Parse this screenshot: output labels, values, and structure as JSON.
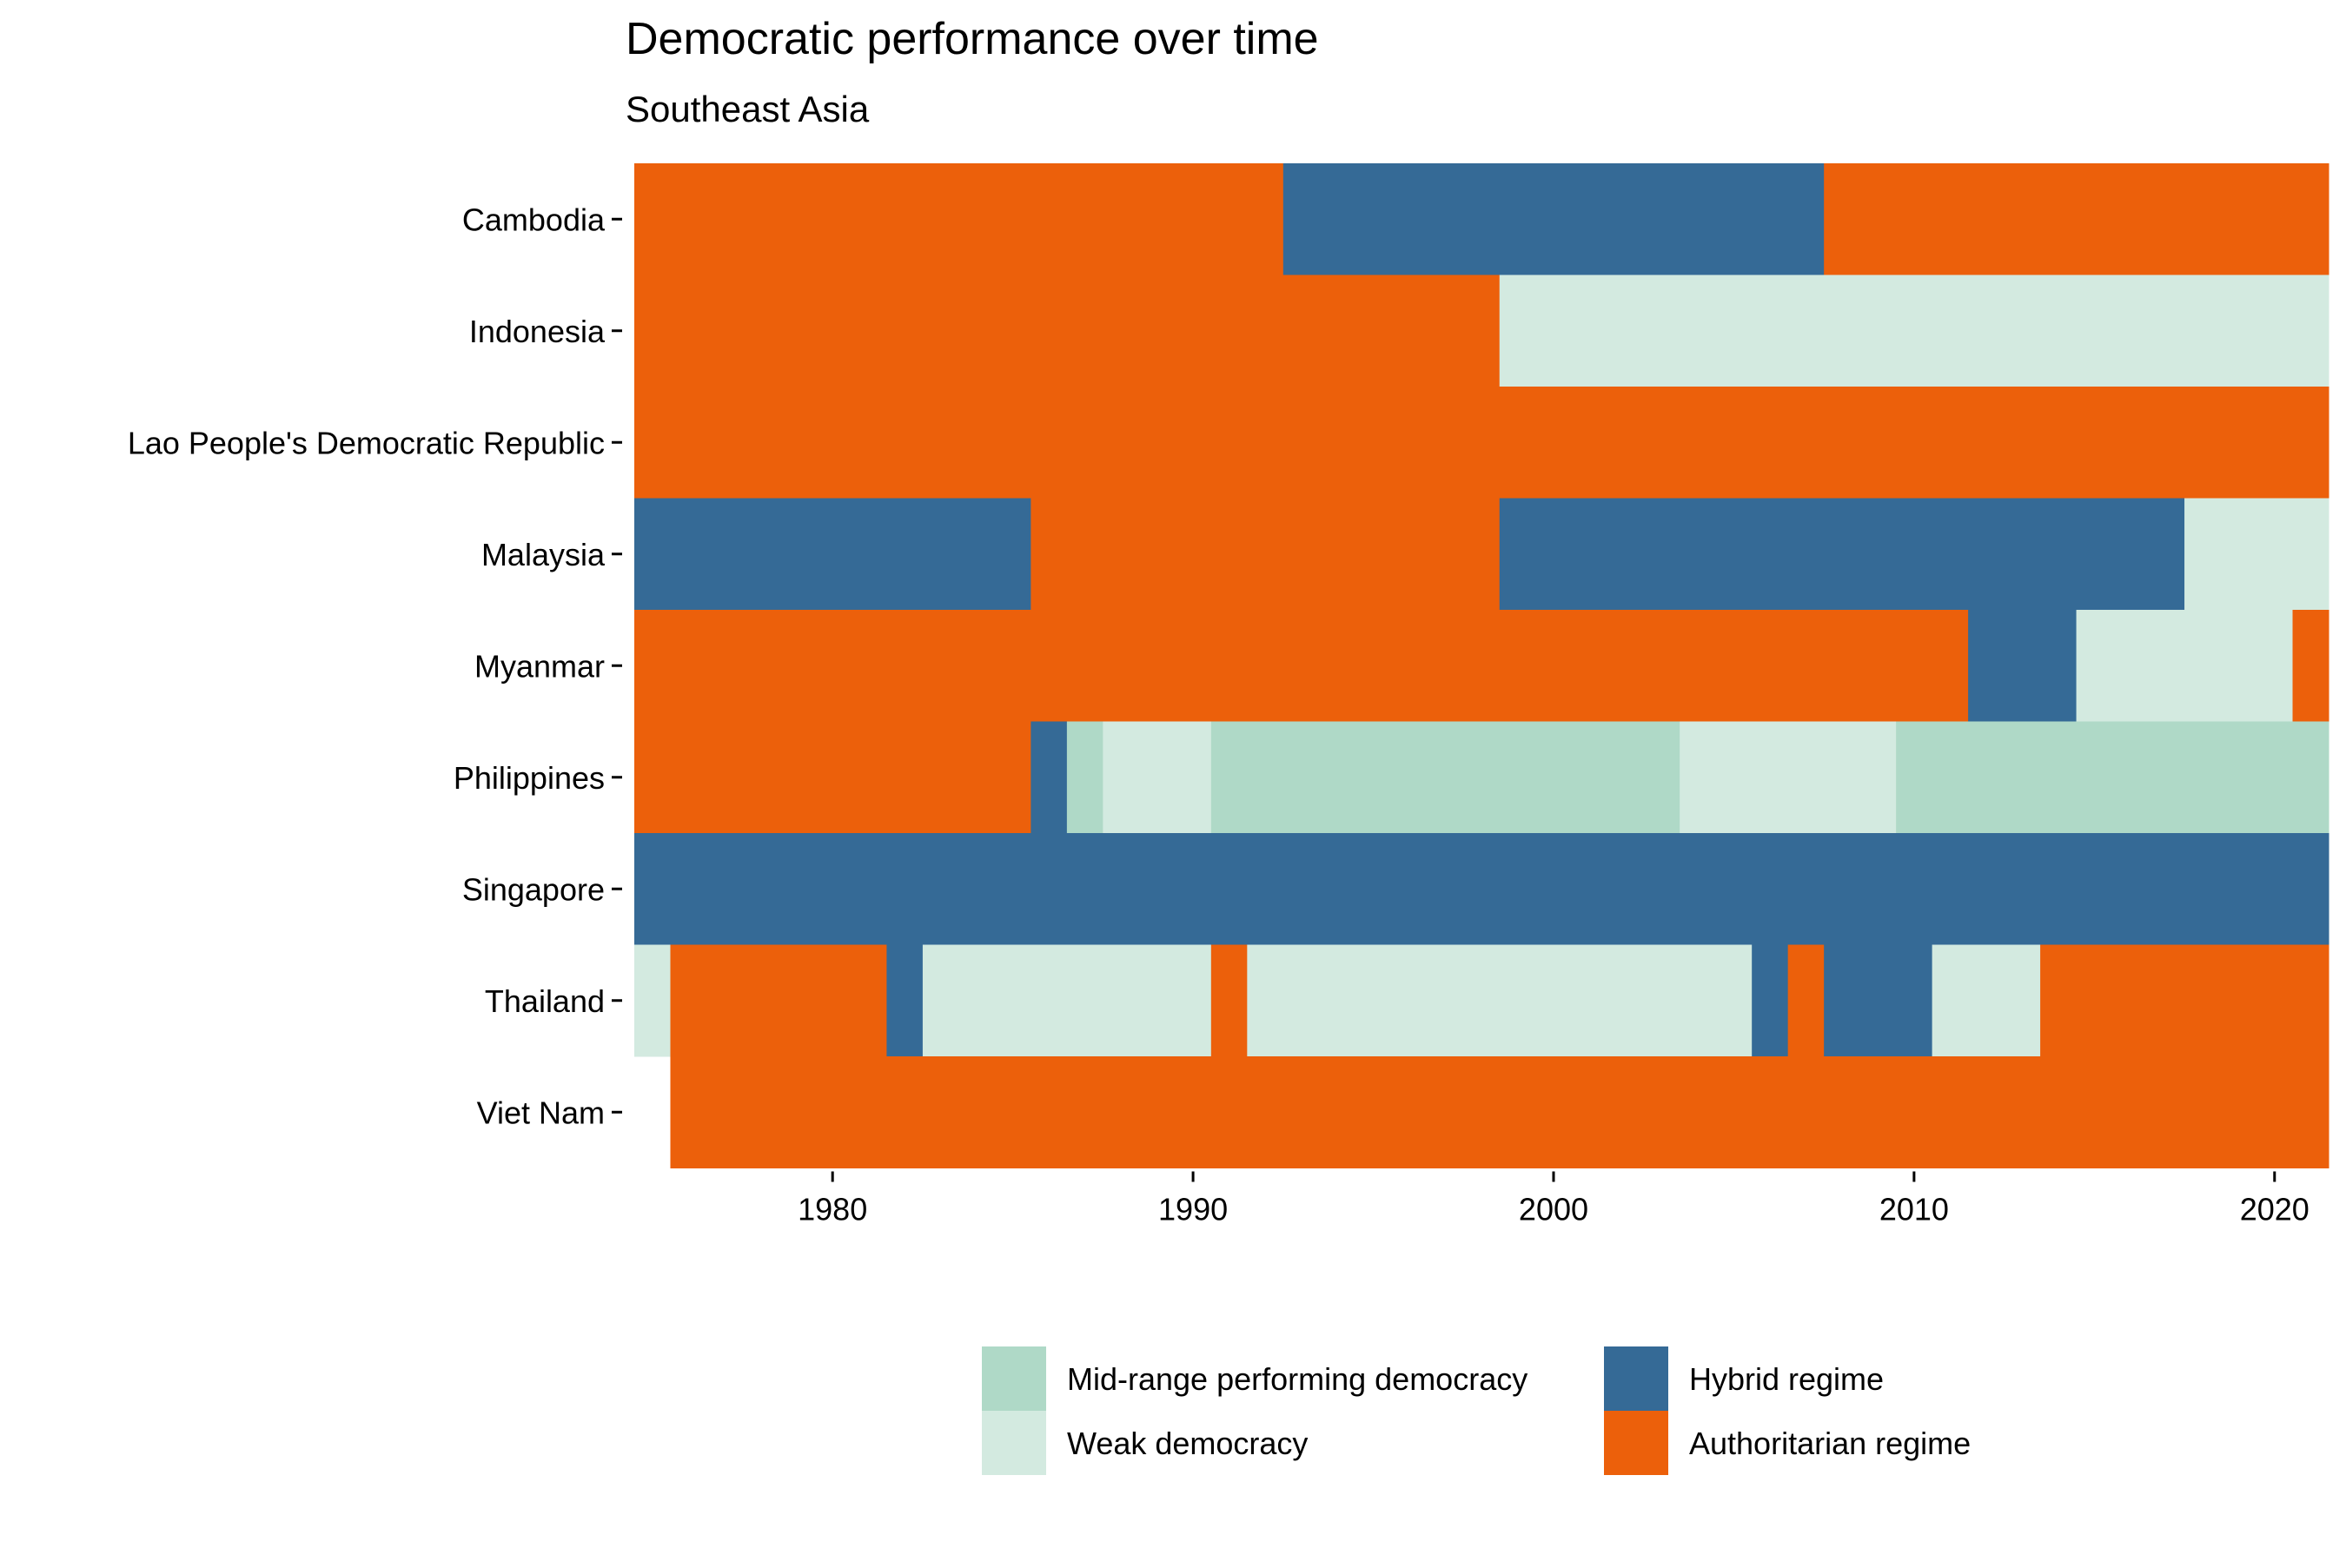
{
  "chart_data": {
    "type": "heatmap",
    "title": "Democratic performance over time",
    "subtitle": "Southeast Asia",
    "xlabel": "",
    "ylabel": "",
    "xlim": [
      1975,
      2021
    ],
    "x_ticks": [
      "1980",
      "1990",
      "2000",
      "2010",
      "2020"
    ],
    "categories": [
      "Cambodia",
      "Indonesia",
      "Lao People's Democratic Republic",
      "Malaysia",
      "Myanmar",
      "Philippines",
      "Singapore",
      "Thailand",
      "Viet Nam"
    ],
    "legend": {
      "position": "bottom",
      "items": [
        {
          "key": "mid",
          "label": "Mid-range performing democracy",
          "color": "#AFD9C7"
        },
        {
          "key": "weak",
          "label": "Weak democracy",
          "color": "#D3EAE0"
        },
        {
          "key": "hybrid",
          "label": "Hybrid regime",
          "color": "#356A96"
        },
        {
          "key": "auth",
          "label": "Authoritarian regime",
          "color": "#EC600B"
        }
      ]
    },
    "series": [
      {
        "country": "Cambodia",
        "periods": [
          {
            "start": 1975,
            "end": 1992,
            "regime": "auth"
          },
          {
            "start": 1993,
            "end": 2007,
            "regime": "hybrid"
          },
          {
            "start": 2008,
            "end": 2021,
            "regime": "auth"
          }
        ]
      },
      {
        "country": "Indonesia",
        "periods": [
          {
            "start": 1975,
            "end": 1998,
            "regime": "auth"
          },
          {
            "start": 1999,
            "end": 2021,
            "regime": "weak"
          }
        ]
      },
      {
        "country": "Lao People's Democratic Republic",
        "periods": [
          {
            "start": 1975,
            "end": 2021,
            "regime": "auth"
          }
        ]
      },
      {
        "country": "Malaysia",
        "periods": [
          {
            "start": 1975,
            "end": 1985,
            "regime": "hybrid"
          },
          {
            "start": 1986,
            "end": 1998,
            "regime": "auth"
          },
          {
            "start": 1999,
            "end": 2017,
            "regime": "hybrid"
          },
          {
            "start": 2018,
            "end": 2021,
            "regime": "weak"
          }
        ]
      },
      {
        "country": "Myanmar",
        "periods": [
          {
            "start": 1975,
            "end": 2011,
            "regime": "auth"
          },
          {
            "start": 2012,
            "end": 2014,
            "regime": "hybrid"
          },
          {
            "start": 2015,
            "end": 2020,
            "regime": "weak"
          },
          {
            "start": 2021,
            "end": 2021,
            "regime": "auth"
          }
        ]
      },
      {
        "country": "Philippines",
        "periods": [
          {
            "start": 1975,
            "end": 1985,
            "regime": "auth"
          },
          {
            "start": 1986,
            "end": 1986,
            "regime": "hybrid"
          },
          {
            "start": 1987,
            "end": 1987,
            "regime": "mid"
          },
          {
            "start": 1988,
            "end": 1990,
            "regime": "weak"
          },
          {
            "start": 1991,
            "end": 2003,
            "regime": "mid"
          },
          {
            "start": 2004,
            "end": 2009,
            "regime": "weak"
          },
          {
            "start": 2010,
            "end": 2021,
            "regime": "mid"
          }
        ]
      },
      {
        "country": "Singapore",
        "periods": [
          {
            "start": 1975,
            "end": 2021,
            "regime": "hybrid"
          }
        ]
      },
      {
        "country": "Thailand",
        "periods": [
          {
            "start": 1975,
            "end": 1975,
            "regime": "weak"
          },
          {
            "start": 1976,
            "end": 1981,
            "regime": "auth"
          },
          {
            "start": 1982,
            "end": 1982,
            "regime": "hybrid"
          },
          {
            "start": 1983,
            "end": 1990,
            "regime": "weak"
          },
          {
            "start": 1991,
            "end": 1991,
            "regime": "auth"
          },
          {
            "start": 1992,
            "end": 2005,
            "regime": "weak"
          },
          {
            "start": 2006,
            "end": 2006,
            "regime": "hybrid"
          },
          {
            "start": 2007,
            "end": 2007,
            "regime": "auth"
          },
          {
            "start": 2008,
            "end": 2010,
            "regime": "hybrid"
          },
          {
            "start": 2011,
            "end": 2013,
            "regime": "weak"
          },
          {
            "start": 2014,
            "end": 2021,
            "regime": "auth"
          }
        ]
      },
      {
        "country": "Viet Nam",
        "periods": [
          {
            "start": 1976,
            "end": 2021,
            "regime": "auth"
          }
        ]
      }
    ]
  }
}
